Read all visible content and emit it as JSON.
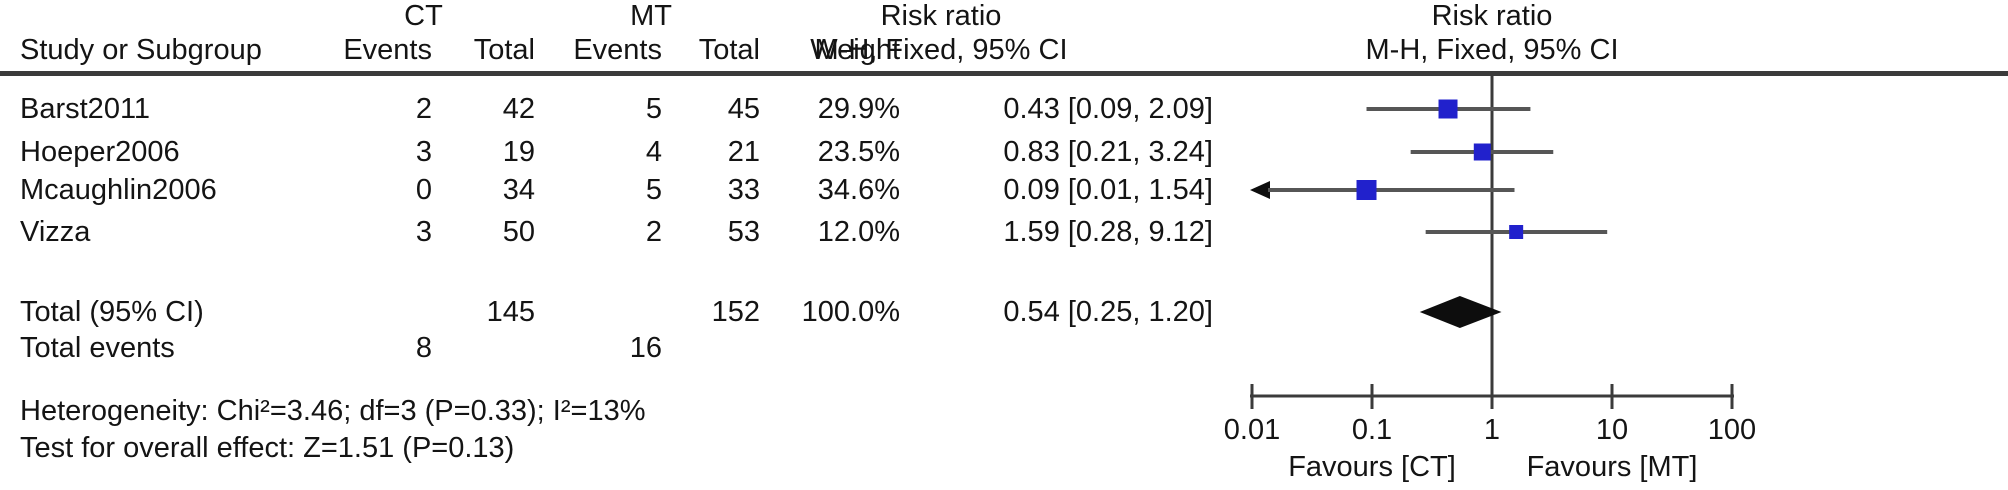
{
  "colors": {
    "square": "#2121cc",
    "diamond": "#0d0d0d",
    "ci_line": "#565656",
    "axis": "#3b3b3b",
    "text": "#141414"
  },
  "header": {
    "group_ct": "CT",
    "group_mt": "MT",
    "risk_ratio_left_line1": "Risk ratio",
    "risk_ratio_left_line2": "M-H, Fixed, 95% CI",
    "risk_ratio_right_line1": "Risk ratio",
    "risk_ratio_right_line2": "M-H, Fixed, 95% CI",
    "col_study": "Study or Subgroup",
    "col_events_ct": "Events",
    "col_total_ct": "Total",
    "col_events_mt": "Events",
    "col_total_mt": "Total",
    "col_weight": "Weight"
  },
  "chart_data": {
    "type": "forest_plot",
    "effect_measure": "Risk ratio",
    "method": "M-H, Fixed, 95% CI",
    "x_scale": "log10",
    "x_range": [
      0.01,
      100
    ],
    "x_ticks": [
      {
        "value": 0.01,
        "label": "0.01"
      },
      {
        "value": 0.1,
        "label": "0.1"
      },
      {
        "value": 1,
        "label": "1"
      },
      {
        "value": 10,
        "label": "10"
      },
      {
        "value": 100,
        "label": "100"
      }
    ],
    "favours_left": "Favours [CT]",
    "favours_right": "Favours [MT]",
    "studies": [
      {
        "name": "Barst2011",
        "ct_events": "2",
        "ct_total": "42",
        "mt_events": "5",
        "mt_total": "45",
        "weight": "29.9%",
        "weight_value": 29.9,
        "rr_text": "0.43 [0.09, 2.09]",
        "rr": 0.43,
        "ci_low": 0.09,
        "ci_high": 2.09,
        "arrow_low": false
      },
      {
        "name": "Hoeper2006",
        "ct_events": "3",
        "ct_total": "19",
        "mt_events": "4",
        "mt_total": "21",
        "weight": "23.5%",
        "weight_value": 23.5,
        "rr_text": "0.83 [0.21, 3.24]",
        "rr": 0.83,
        "ci_low": 0.21,
        "ci_high": 3.24,
        "arrow_low": false
      },
      {
        "name": "Mcaughlin2006",
        "ct_events": "0",
        "ct_total": "34",
        "mt_events": "5",
        "mt_total": "33",
        "weight": "34.6%",
        "weight_value": 34.6,
        "rr_text": "0.09 [0.01, 1.54]",
        "rr": 0.09,
        "ci_low": 0.01,
        "ci_high": 1.54,
        "arrow_low": true
      },
      {
        "name": "Vizza",
        "ct_events": "3",
        "ct_total": "50",
        "mt_events": "2",
        "mt_total": "53",
        "weight": "12.0%",
        "weight_value": 12.0,
        "rr_text": "1.59 [0.28, 9.12]",
        "rr": 1.59,
        "ci_low": 0.28,
        "ci_high": 9.12,
        "arrow_low": false
      }
    ],
    "total": {
      "label": "Total (95% CI)",
      "ct_total": "145",
      "mt_total": "152",
      "weight": "100.0%",
      "rr_text": "0.54 [0.25, 1.20]",
      "rr": 0.54,
      "ci_low": 0.25,
      "ci_high": 1.2
    },
    "total_events": {
      "label": "Total events",
      "ct": "8",
      "mt": "16"
    },
    "heterogeneity": "Heterogeneity: Chi²=3.46; df=3 (P=0.33); I²=13%",
    "overall_effect": "Test for overall effect: Z=1.51 (P=0.13)"
  }
}
